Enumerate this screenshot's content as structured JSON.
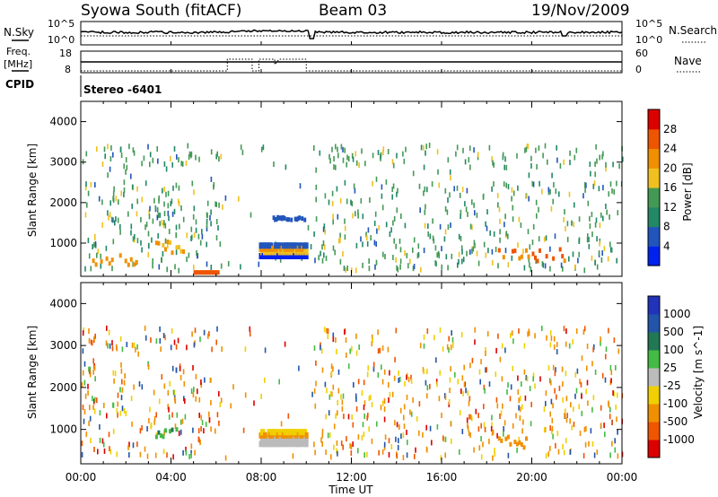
{
  "header": {
    "station": "Syowa South (fitACF)",
    "beam": "Beam 03",
    "date": "19/Nov/2009"
  },
  "noise_panel": {
    "left_label": "N.Sky",
    "right_label": "N.Search",
    "left_ticks": [
      "10^5",
      "10^0"
    ],
    "right_ticks": [
      "10^5",
      "10^0"
    ]
  },
  "freq_panel": {
    "left_label_top": "Freq.",
    "left_label_bottom": "[MHz]",
    "left_ticks": [
      "18",
      "8"
    ],
    "right_label": "Nave",
    "right_ticks": [
      "60",
      "0"
    ]
  },
  "cpid": {
    "label": "CPID",
    "value": "Stereo -6401"
  },
  "colors": {
    "power_scale": [
      "#0022ee",
      "#2255bb",
      "#228866",
      "#449955",
      "#f0c020",
      "#f09000",
      "#ee5500",
      "#dd0000"
    ],
    "velocity_scale": [
      "#2233bb",
      "#2255aa",
      "#227755",
      "#44bb44",
      "#bbbbbb",
      "#f0d000",
      "#f09000",
      "#f05500",
      "#dd0000"
    ]
  },
  "chart_data": [
    {
      "type": "heatmap",
      "name": "power",
      "ylabel": "Slant Range [km]",
      "yticks": [
        "1000",
        "2000",
        "3000",
        "4000"
      ],
      "colorbar_label": "Power [dB]",
      "colorbar_ticks": [
        "4",
        "8",
        "12",
        "16",
        "20",
        "24",
        "28"
      ],
      "xlim_hours": [
        0,
        24
      ],
      "ylim_km": [
        180,
        4500
      ]
    },
    {
      "type": "heatmap",
      "name": "velocity",
      "ylabel": "Slant Range [km]",
      "yticks": [
        "1000",
        "2000",
        "3000",
        "4000"
      ],
      "colorbar_label": "Velocity [m s^-1]",
      "colorbar_ticks": [
        "1000",
        "500",
        "100",
        "25",
        "-25",
        "-100",
        "-500",
        "-1000"
      ],
      "xlim_hours": [
        0,
        24
      ],
      "ylim_km": [
        180,
        4500
      ]
    }
  ],
  "xaxis": {
    "label": "Time UT",
    "ticks": [
      "00:00",
      "04:00",
      "08:00",
      "12:00",
      "16:00",
      "20:00",
      "00:00"
    ]
  }
}
